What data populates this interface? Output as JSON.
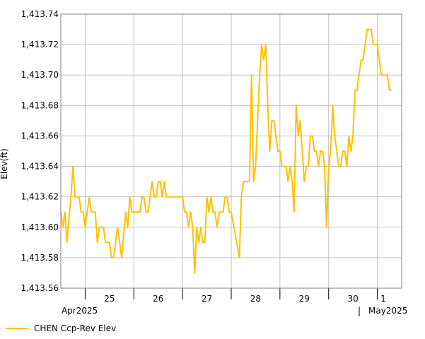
{
  "chart_data": {
    "type": "line",
    "title": "",
    "ylabel": "Elev(ft)",
    "xlabel": "",
    "ylim": [
      1413.56,
      1413.74
    ],
    "yticks": [
      "1,413.56",
      "1,413.58",
      "1,413.60",
      "1,413.62",
      "1,413.64",
      "1,413.66",
      "1,413.68",
      "1,413.70",
      "1,413.72",
      "1,413.74"
    ],
    "xlim": [
      "2025-04-24T12:00",
      "2025-05-01T12:00"
    ],
    "day_labels": [
      "25",
      "26",
      "27",
      "28",
      "29",
      "30",
      "1"
    ],
    "month_labels": [
      "Apr2025",
      "May2025"
    ],
    "grid": true,
    "legend_position": "bottom-left",
    "series": [
      {
        "name": "CHEN Ccp-Rev Elev",
        "color": "#ffc000",
        "points": [
          [
            "2025-04-24T12:00",
            1413.61
          ],
          [
            "2025-04-24T13:00",
            1413.6
          ],
          [
            "2025-04-24T14:00",
            1413.61
          ],
          [
            "2025-04-24T15:00",
            1413.59
          ],
          [
            "2025-04-24T17:00",
            1413.62
          ],
          [
            "2025-04-24T18:00",
            1413.64
          ],
          [
            "2025-04-24T19:00",
            1413.62
          ],
          [
            "2025-04-24T21:00",
            1413.62
          ],
          [
            "2025-04-24T22:00",
            1413.61
          ],
          [
            "2025-04-24T23:00",
            1413.61
          ],
          [
            "2025-04-25T00:00",
            1413.6
          ],
          [
            "2025-04-25T02:00",
            1413.62
          ],
          [
            "2025-04-25T03:00",
            1413.61
          ],
          [
            "2025-04-25T05:00",
            1413.61
          ],
          [
            "2025-04-25T06:00",
            1413.59
          ],
          [
            "2025-04-25T07:00",
            1413.6
          ],
          [
            "2025-04-25T09:00",
            1413.6
          ],
          [
            "2025-04-25T10:00",
            1413.59
          ],
          [
            "2025-04-25T12:00",
            1413.59
          ],
          [
            "2025-04-25T13:00",
            1413.58
          ],
          [
            "2025-04-25T14:00",
            1413.58
          ],
          [
            "2025-04-25T16:00",
            1413.6
          ],
          [
            "2025-04-25T18:00",
            1413.58
          ],
          [
            "2025-04-25T20:00",
            1413.61
          ],
          [
            "2025-04-25T21:00",
            1413.6
          ],
          [
            "2025-04-25T22:00",
            1413.62
          ],
          [
            "2025-04-25T23:00",
            1413.61
          ],
          [
            "2025-04-26T02:00",
            1413.61
          ],
          [
            "2025-04-26T03:00",
            1413.61
          ],
          [
            "2025-04-26T04:00",
            1413.62
          ],
          [
            "2025-04-26T05:00",
            1413.62
          ],
          [
            "2025-04-26T06:00",
            1413.61
          ],
          [
            "2025-04-26T07:00",
            1413.61
          ],
          [
            "2025-04-26T08:00",
            1413.62
          ],
          [
            "2025-04-26T09:00",
            1413.63
          ],
          [
            "2025-04-26T10:00",
            1413.62
          ],
          [
            "2025-04-26T11:00",
            1413.62
          ],
          [
            "2025-04-26T12:00",
            1413.63
          ],
          [
            "2025-04-26T13:00",
            1413.63
          ],
          [
            "2025-04-26T14:00",
            1413.62
          ],
          [
            "2025-04-26T15:00",
            1413.63
          ],
          [
            "2025-04-26T16:00",
            1413.62
          ],
          [
            "2025-04-27T00:00",
            1413.62
          ],
          [
            "2025-04-27T01:00",
            1413.61
          ],
          [
            "2025-04-27T02:00",
            1413.61
          ],
          [
            "2025-04-27T03:00",
            1413.6
          ],
          [
            "2025-04-27T04:00",
            1413.61
          ],
          [
            "2025-04-27T05:00",
            1413.6
          ],
          [
            "2025-04-27T06:00",
            1413.57
          ],
          [
            "2025-04-27T07:00",
            1413.6
          ],
          [
            "2025-04-27T08:00",
            1413.59
          ],
          [
            "2025-04-27T09:00",
            1413.6
          ],
          [
            "2025-04-27T10:00",
            1413.59
          ],
          [
            "2025-04-27T11:00",
            1413.59
          ],
          [
            "2025-04-27T12:00",
            1413.62
          ],
          [
            "2025-04-27T13:00",
            1413.61
          ],
          [
            "2025-04-27T14:00",
            1413.62
          ],
          [
            "2025-04-27T15:00",
            1413.61
          ],
          [
            "2025-04-27T16:00",
            1413.61
          ],
          [
            "2025-04-27T17:00",
            1413.6
          ],
          [
            "2025-04-27T18:00",
            1413.61
          ],
          [
            "2025-04-27T20:00",
            1413.61
          ],
          [
            "2025-04-27T21:00",
            1413.62
          ],
          [
            "2025-04-27T22:00",
            1413.62
          ],
          [
            "2025-04-27T23:00",
            1413.61
          ],
          [
            "2025-04-28T00:00",
            1413.61
          ],
          [
            "2025-04-28T04:00",
            1413.58
          ],
          [
            "2025-04-28T05:00",
            1413.62
          ],
          [
            "2025-04-28T06:00",
            1413.63
          ],
          [
            "2025-04-28T09:00",
            1413.63
          ],
          [
            "2025-04-28T10:00",
            1413.7
          ],
          [
            "2025-04-28T11:00",
            1413.63
          ],
          [
            "2025-04-28T12:00",
            1413.64
          ],
          [
            "2025-04-28T14:00",
            1413.7
          ],
          [
            "2025-04-28T15:00",
            1413.72
          ],
          [
            "2025-04-28T16:00",
            1413.71
          ],
          [
            "2025-04-28T17:00",
            1413.72
          ],
          [
            "2025-04-28T18:00",
            1413.68
          ],
          [
            "2025-04-28T19:00",
            1413.65
          ],
          [
            "2025-04-28T20:00",
            1413.67
          ],
          [
            "2025-04-28T21:00",
            1413.67
          ],
          [
            "2025-04-28T23:00",
            1413.65
          ],
          [
            "2025-04-29T00:00",
            1413.65
          ],
          [
            "2025-04-29T01:00",
            1413.64
          ],
          [
            "2025-04-29T03:00",
            1413.64
          ],
          [
            "2025-04-29T04:00",
            1413.63
          ],
          [
            "2025-04-29T05:00",
            1413.64
          ],
          [
            "2025-04-29T06:00",
            1413.63
          ],
          [
            "2025-04-29T07:00",
            1413.61
          ],
          [
            "2025-04-29T08:00",
            1413.68
          ],
          [
            "2025-04-29T09:00",
            1413.66
          ],
          [
            "2025-04-29T10:00",
            1413.67
          ],
          [
            "2025-04-29T11:00",
            1413.65
          ],
          [
            "2025-04-29T12:00",
            1413.63
          ],
          [
            "2025-04-29T13:00",
            1413.64
          ],
          [
            "2025-04-29T14:00",
            1413.64
          ],
          [
            "2025-04-29T15:00",
            1413.66
          ],
          [
            "2025-04-29T16:00",
            1413.66
          ],
          [
            "2025-04-29T17:00",
            1413.65
          ],
          [
            "2025-04-29T18:00",
            1413.65
          ],
          [
            "2025-04-29T19:00",
            1413.64
          ],
          [
            "2025-04-29T20:00",
            1413.65
          ],
          [
            "2025-04-29T21:00",
            1413.65
          ],
          [
            "2025-04-29T22:00",
            1413.64
          ],
          [
            "2025-04-29T23:00",
            1413.6
          ],
          [
            "2025-04-30T00:00",
            1413.64
          ],
          [
            "2025-04-30T01:00",
            1413.65
          ],
          [
            "2025-04-30T02:00",
            1413.68
          ],
          [
            "2025-04-30T03:00",
            1413.66
          ],
          [
            "2025-04-30T04:00",
            1413.65
          ],
          [
            "2025-04-30T05:00",
            1413.64
          ],
          [
            "2025-04-30T06:00",
            1413.64
          ],
          [
            "2025-04-30T07:00",
            1413.65
          ],
          [
            "2025-04-30T08:00",
            1413.65
          ],
          [
            "2025-04-30T09:00",
            1413.64
          ],
          [
            "2025-04-30T10:00",
            1413.66
          ],
          [
            "2025-04-30T11:00",
            1413.65
          ],
          [
            "2025-04-30T12:00",
            1413.66
          ],
          [
            "2025-04-30T13:00",
            1413.69
          ],
          [
            "2025-04-30T14:00",
            1413.69
          ],
          [
            "2025-04-30T15:00",
            1413.7
          ],
          [
            "2025-04-30T16:00",
            1413.71
          ],
          [
            "2025-04-30T17:00",
            1413.71
          ],
          [
            "2025-04-30T18:00",
            1413.72
          ],
          [
            "2025-04-30T19:00",
            1413.73
          ],
          [
            "2025-04-30T21:00",
            1413.73
          ],
          [
            "2025-04-30T22:00",
            1413.72
          ],
          [
            "2025-05-01T00:00",
            1413.72
          ],
          [
            "2025-05-01T01:00",
            1413.71
          ],
          [
            "2025-05-01T02:00",
            1413.7
          ],
          [
            "2025-05-01T03:00",
            1413.7
          ],
          [
            "2025-05-01T05:00",
            1413.7
          ],
          [
            "2025-05-01T06:00",
            1413.69
          ],
          [
            "2025-05-01T07:00",
            1413.69
          ]
        ]
      }
    ]
  }
}
